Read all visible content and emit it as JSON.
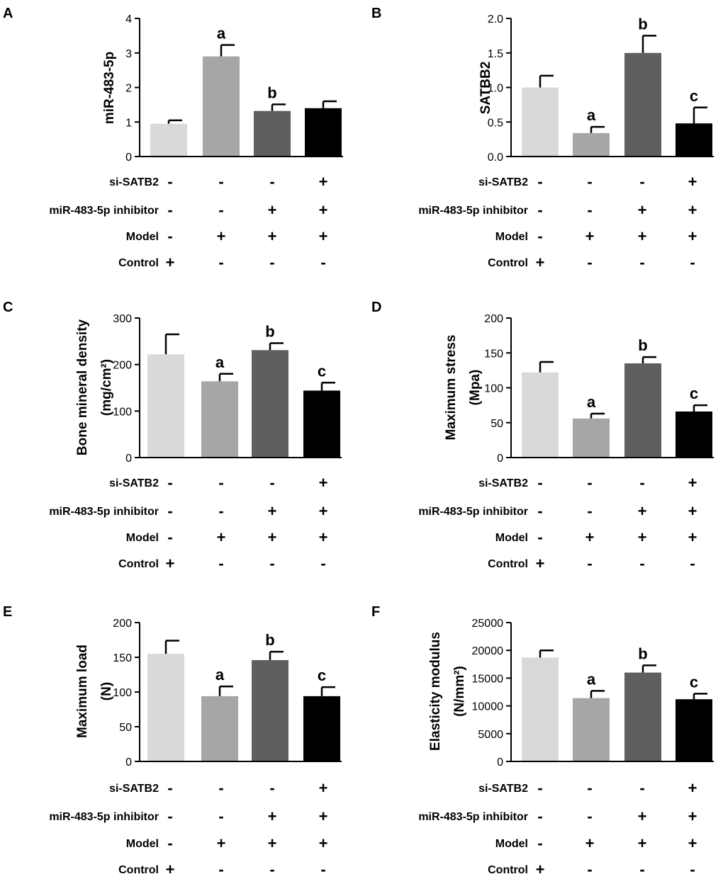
{
  "conditions": [
    "si-SATB2",
    "miR-483-5p inhibitor",
    "Model",
    "Control"
  ],
  "groups": [
    {
      "si-SATB2": "-",
      "miR-483-5p inhibitor": "-",
      "Model": "-",
      "Control": "+"
    },
    {
      "si-SATB2": "-",
      "miR-483-5p inhibitor": "-",
      "Model": "+",
      "Control": "-"
    },
    {
      "si-SATB2": "-",
      "miR-483-5p inhibitor": "+",
      "Model": "+",
      "Control": "-"
    },
    {
      "si-SATB2": "+",
      "miR-483-5p inhibitor": "+",
      "Model": "+",
      "Control": "-"
    }
  ],
  "colors": [
    "#d9d9d9",
    "#a6a6a6",
    "#5f5f5f",
    "#000000"
  ],
  "chart_data": [
    {
      "panel": "A",
      "type": "bar",
      "ylabel": [
        "miR-483-5p"
      ],
      "ylim": [
        0,
        4
      ],
      "yticks": [
        0,
        1,
        2,
        3,
        4
      ],
      "ytick_labels": [
        "0",
        "1",
        "2",
        "3",
        "4"
      ],
      "values": [
        0.95,
        2.9,
        1.32,
        1.4
      ],
      "errors": [
        0.1,
        0.33,
        0.19,
        0.2
      ],
      "letters": [
        "",
        "a",
        "b",
        ""
      ]
    },
    {
      "panel": "B",
      "type": "bar",
      "ylabel": [
        "SATBB2"
      ],
      "ylim": [
        0,
        2
      ],
      "yticks": [
        0,
        0.5,
        1,
        1.5,
        2
      ],
      "ytick_labels": [
        "0.0",
        "0.5",
        "1.0",
        "1.5",
        "2.0"
      ],
      "values": [
        1.0,
        0.34,
        1.5,
        0.48
      ],
      "errors": [
        0.17,
        0.09,
        0.25,
        0.23
      ],
      "letters": [
        "",
        "a",
        "b",
        "c"
      ]
    },
    {
      "panel": "C",
      "type": "bar",
      "ylabel": [
        "Bone mineral density",
        "(mg/cm²)"
      ],
      "ylim": [
        0,
        300
      ],
      "yticks": [
        0,
        100,
        200,
        300
      ],
      "ytick_labels": [
        "0",
        "100",
        "200",
        "300"
      ],
      "values": [
        222,
        164,
        231,
        144
      ],
      "errors": [
        43,
        16,
        15,
        17
      ],
      "letters": [
        "",
        "a",
        "b",
        "c"
      ]
    },
    {
      "panel": "D",
      "type": "bar",
      "ylabel": [
        "Maximum stress",
        "(Mpa)"
      ],
      "ylim": [
        0,
        200
      ],
      "yticks": [
        0,
        50,
        100,
        150,
        200
      ],
      "ytick_labels": [
        "0",
        "50",
        "100",
        "150",
        "200"
      ],
      "values": [
        122,
        56,
        135,
        66
      ],
      "errors": [
        15,
        7,
        9,
        9
      ],
      "letters": [
        "",
        "a",
        "b",
        "c"
      ]
    },
    {
      "panel": "E",
      "type": "bar",
      "ylabel": [
        "Maximum load",
        "(N)"
      ],
      "ylim": [
        0,
        200
      ],
      "yticks": [
        0,
        50,
        100,
        150,
        200
      ],
      "ytick_labels": [
        "0",
        "50",
        "100",
        "150",
        "200"
      ],
      "values": [
        155,
        94,
        146,
        94
      ],
      "errors": [
        19,
        14,
        12,
        13
      ],
      "letters": [
        "",
        "a",
        "b",
        "c"
      ]
    },
    {
      "panel": "F",
      "type": "bar",
      "ylabel": [
        "Elasticity modulus",
        "(N/mm²)"
      ],
      "ylim": [
        0,
        25000
      ],
      "yticks": [
        0,
        5000,
        10000,
        15000,
        20000,
        25000
      ],
      "ytick_labels": [
        "0",
        "5000",
        "10000",
        "15000",
        "20000",
        "25000"
      ],
      "values": [
        18700,
        11400,
        16000,
        11200
      ],
      "errors": [
        1300,
        1300,
        1300,
        1000
      ],
      "letters": [
        "",
        "a",
        "b",
        "c"
      ]
    }
  ]
}
